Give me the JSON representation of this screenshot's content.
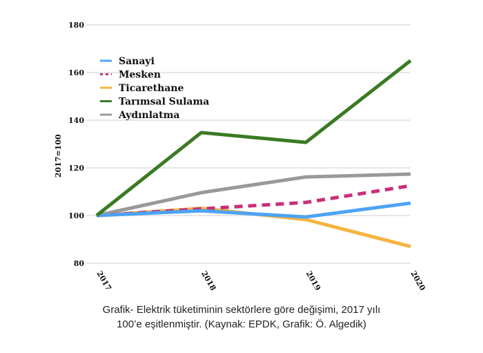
{
  "chart_data": {
    "type": "line",
    "title": "",
    "xlabel": "",
    "ylabel": "2017=100",
    "ylim": [
      80,
      180
    ],
    "yticks": [
      "80",
      "100",
      "120",
      "140",
      "160",
      "180"
    ],
    "categories": [
      "2017",
      "2018",
      "2019",
      "2020"
    ],
    "grid": true,
    "legend_position": "top-left",
    "series": [
      {
        "name": "Sanayi",
        "color": "#4da3f5",
        "dash": false,
        "values": [
          100,
          102,
          99.4,
          105.2
        ]
      },
      {
        "name": "Mesken",
        "color": "#c8307a",
        "dash": true,
        "values": [
          100,
          102.8,
          105.5,
          112.5
        ]
      },
      {
        "name": "Ticarethane",
        "color": "#f5b440",
        "dash": false,
        "values": [
          100,
          103,
          98.3,
          87
        ]
      },
      {
        "name": "Tarımsal Sulama",
        "color": "#3b7a23",
        "dash": false,
        "values": [
          100,
          134.8,
          130.7,
          165
        ]
      },
      {
        "name": "Aydınlatma",
        "color": "#999999",
        "dash": false,
        "values": [
          100,
          109.6,
          116.2,
          117.4
        ]
      }
    ]
  },
  "caption": {
    "line1": "Grafik- Elektrik tüketiminin sektörlere göre değişimi, 2017 yılı",
    "line2": "100’e eşitlenmiştir. (Kaynak: EPDK, Grafik: Ö. Algedik)"
  }
}
